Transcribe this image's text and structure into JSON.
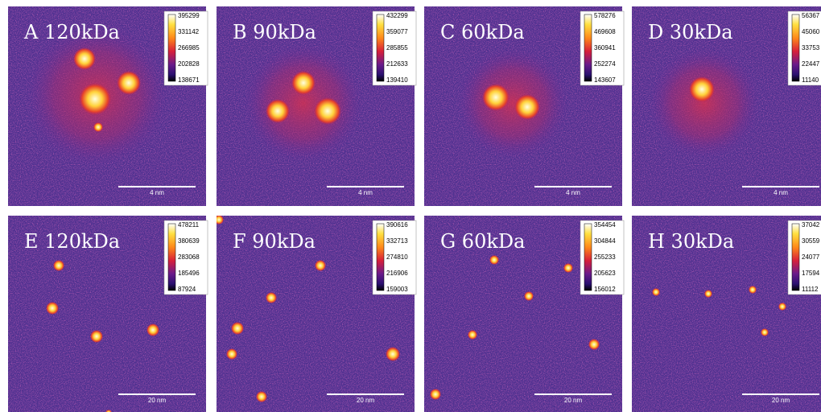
{
  "panels": [
    {
      "label": "A 120kDa",
      "colorbar": [
        395299,
        331142,
        266985,
        202828,
        138671
      ],
      "scale_bar": "4 nm"
    },
    {
      "label": "B 90kDa",
      "colorbar": [
        432299,
        359077,
        285855,
        212633,
        139410
      ],
      "scale_bar": "4 nm"
    },
    {
      "label": "C 60kDa",
      "colorbar": [
        578276,
        469608,
        360941,
        252274,
        143607
      ],
      "scale_bar": "4 nm"
    },
    {
      "label": "D 30kDa",
      "colorbar": [
        56367,
        45060,
        33753,
        22447,
        11140
      ],
      "scale_bar": "4 nm"
    },
    {
      "label": "E 120kDa",
      "colorbar": [
        478211,
        380639,
        283068,
        185496,
        87924
      ],
      "scale_bar": "20 nm"
    },
    {
      "label": "F 90kDa",
      "colorbar": [
        390616,
        332713,
        274810,
        216906,
        159003
      ],
      "scale_bar": "20 nm"
    },
    {
      "label": "G 60kDa",
      "colorbar": [
        354454,
        304844,
        255233,
        205623,
        156012
      ],
      "scale_bar": "20 nm"
    },
    {
      "label": "H 30kDa",
      "colorbar": [
        37042,
        30559,
        24077,
        17594,
        11112
      ],
      "scale_bar": "20 nm"
    }
  ]
}
